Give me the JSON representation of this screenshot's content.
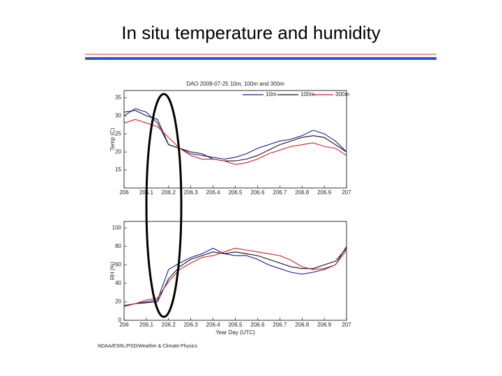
{
  "title": "In situ temperature and humidity",
  "footer": "NOAA/ESRL/PSD/Weather & Climate Physics",
  "chart_data": [
    {
      "type": "line",
      "title": "DAO 2009-07-25 10m, 100m and 300m",
      "ylabel": "Temp (C)",
      "x": [
        206,
        206.05,
        206.1,
        206.15,
        206.2,
        206.25,
        206.3,
        206.35,
        206.4,
        206.45,
        206.5,
        206.55,
        206.6,
        206.65,
        206.7,
        206.75,
        206.8,
        206.85,
        206.9,
        206.95,
        207
      ],
      "xlim": [
        206,
        207
      ],
      "xticks": [
        206,
        206.1,
        206.2,
        206.3,
        206.4,
        206.5,
        206.6,
        206.7,
        206.8,
        206.9,
        207
      ],
      "ylim": [
        10,
        37
      ],
      "yticks": [
        15,
        20,
        25,
        30,
        35
      ],
      "legend": "top-right",
      "series": [
        {
          "name": "10m",
          "color": "#1a1a9c",
          "values": [
            30,
            32,
            31,
            28,
            22,
            21,
            19.5,
            19,
            18.5,
            18,
            18.5,
            19.5,
            21,
            22,
            23,
            23.5,
            24.5,
            26,
            25,
            23,
            20
          ]
        },
        {
          "name": "100m",
          "color": "#111111",
          "values": [
            31,
            31.5,
            30,
            29,
            22,
            21,
            20,
            19.5,
            18,
            17.5,
            17.5,
            18,
            19,
            20.5,
            22,
            23,
            24,
            24.5,
            24,
            22,
            20
          ]
        },
        {
          "name": "300m",
          "color": "#cc2222",
          "values": [
            28,
            29,
            28,
            27,
            24,
            21,
            19,
            18,
            18,
            17.5,
            16.5,
            17,
            18,
            19.5,
            20.5,
            21.5,
            22,
            22.5,
            21.5,
            21,
            19
          ]
        }
      ]
    },
    {
      "type": "line",
      "xlabel": "Year Day (UTC)",
      "ylabel": "RH (%)",
      "x": [
        206,
        206.05,
        206.1,
        206.15,
        206.2,
        206.25,
        206.3,
        206.35,
        206.4,
        206.45,
        206.5,
        206.55,
        206.6,
        206.65,
        206.7,
        206.75,
        206.8,
        206.85,
        206.9,
        206.95,
        207
      ],
      "xlim": [
        206,
        207
      ],
      "xticks": [
        206,
        206.1,
        206.2,
        206.3,
        206.4,
        206.5,
        206.6,
        206.7,
        206.8,
        206.9,
        207
      ],
      "ylim": [
        0,
        107
      ],
      "yticks": [
        0,
        20,
        40,
        60,
        80,
        100
      ],
      "series": [
        {
          "color": "#1a1a9c",
          "values": [
            15,
            18,
            20,
            22,
            55,
            62,
            68,
            72,
            78,
            72,
            70,
            70,
            66,
            60,
            56,
            52,
            50,
            52,
            55,
            60,
            80
          ]
        },
        {
          "color": "#111111",
          "values": [
            16,
            18,
            19,
            20,
            45,
            58,
            66,
            70,
            74,
            72,
            74,
            72,
            70,
            66,
            62,
            58,
            56,
            56,
            60,
            64,
            78
          ]
        },
        {
          "color": "#cc2222",
          "values": [
            15,
            18,
            22,
            24,
            42,
            55,
            62,
            68,
            70,
            74,
            78,
            76,
            74,
            72,
            70,
            65,
            58,
            55,
            56,
            60,
            76
          ]
        }
      ]
    }
  ]
}
